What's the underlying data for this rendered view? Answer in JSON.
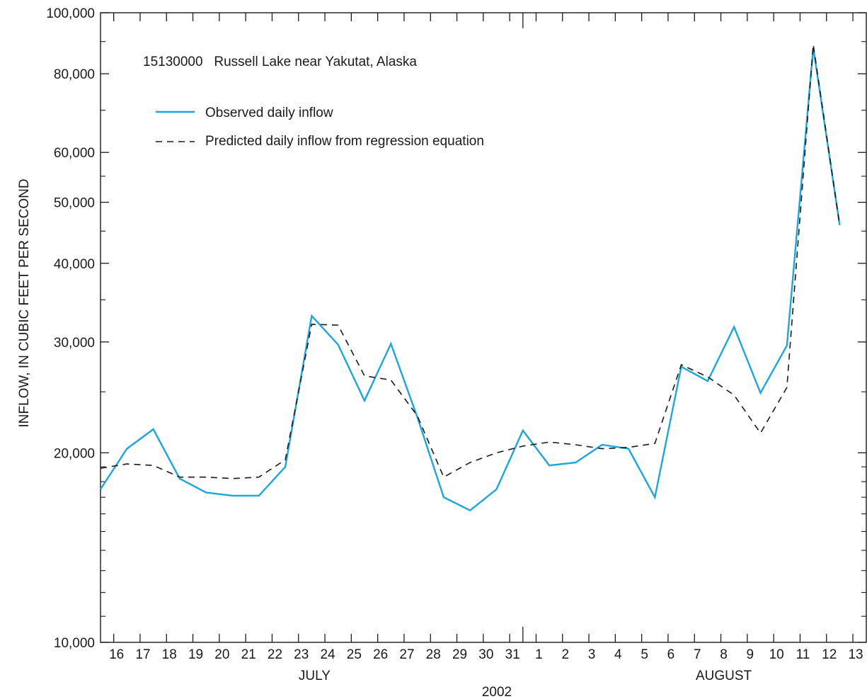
{
  "chart_data": {
    "type": "line",
    "title": "15130000   Russell Lake near Yakutat, Alaska",
    "ylabel": "INFLOW, IN CUBIC FEET PER SECOND",
    "xlabel_year": "2002",
    "yscale": "log",
    "ylim": [
      10000,
      100000
    ],
    "y_tick_labels": [
      {
        "value": 10000,
        "label": "10,000"
      },
      {
        "value": 20000,
        "label": "20,000"
      },
      {
        "value": 30000,
        "label": "30,000"
      },
      {
        "value": 40000,
        "label": "40,000"
      },
      {
        "value": 50000,
        "label": "50,000"
      },
      {
        "value": 60000,
        "label": "60,000"
      },
      {
        "value": 80000,
        "label": "80,000"
      },
      {
        "value": 100000,
        "label": "100,000"
      }
    ],
    "y_minor_ticks": [
      11000,
      12000,
      13000,
      14000,
      15000,
      16000,
      17000,
      18000,
      19000,
      25000,
      35000,
      45000,
      55000,
      70000,
      90000
    ],
    "x_days": [
      "16",
      "17",
      "18",
      "19",
      "20",
      "21",
      "22",
      "23",
      "24",
      "25",
      "26",
      "27",
      "28",
      "29",
      "30",
      "31",
      "1",
      "2",
      "3",
      "4",
      "5",
      "6",
      "7",
      "8",
      "9",
      "10",
      "11",
      "12",
      "13"
    ],
    "months": [
      {
        "label": "JULY",
        "center_day_index": 7.5
      },
      {
        "label": "AUGUST",
        "center_day_index": 23
      }
    ],
    "month_divider_day_index": 15.5,
    "grid": false,
    "legend_position": "top-left",
    "series": [
      {
        "name": "Observed daily inflow",
        "color": "#1aa6df",
        "dash": "solid",
        "values": [
          17500,
          20300,
          21800,
          18200,
          17300,
          17100,
          17100,
          19000,
          33000,
          29700,
          24200,
          29800,
          22800,
          17000,
          16200,
          17500,
          21700,
          19100,
          19300,
          20600,
          20300,
          17000,
          27400,
          26000,
          31700,
          24900,
          29600,
          88000,
          46000
        ]
      },
      {
        "name": "Predicted daily inflow from regression equation",
        "color": "#1a1a1a",
        "dash": "dashed",
        "values": [
          18900,
          19200,
          19100,
          18300,
          18300,
          18200,
          18300,
          19500,
          32000,
          31900,
          26500,
          26100,
          22900,
          18300,
          19300,
          20000,
          20500,
          20800,
          20600,
          20300,
          20400,
          20700,
          27600,
          26400,
          24700,
          21500,
          25400,
          89000,
          46000
        ]
      }
    ]
  }
}
